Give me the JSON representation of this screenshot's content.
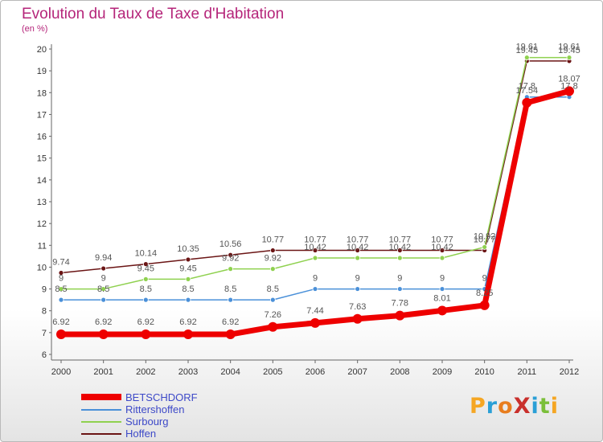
{
  "header": {
    "title": "Evolution du Taux de Taxe d'Habitation",
    "subtitle": "(en %)"
  },
  "logo": {
    "text": "ProXiti",
    "letters": [
      "P",
      "r",
      "o",
      "X",
      "i",
      "t",
      "i"
    ],
    "colors": [
      "#f5a623",
      "#2a9fd6",
      "#e87d1e",
      "#c9302c",
      "#2a9fd6",
      "#7bbf3a",
      "#f5a623"
    ]
  },
  "chart_data": {
    "type": "line",
    "title": "Evolution du Taux de Taxe d'Habitation",
    "subtitle": "(en %)",
    "xlabel": "",
    "ylabel": "",
    "categories": [
      "2000",
      "2001",
      "2002",
      "2003",
      "2004",
      "2005",
      "2006",
      "2007",
      "2008",
      "2009",
      "2010",
      "2011",
      "2012"
    ],
    "ylim": [
      6,
      20
    ],
    "yticks": [
      6,
      7,
      8,
      9,
      10,
      11,
      12,
      13,
      14,
      15,
      16,
      17,
      18,
      19,
      20
    ],
    "grid": false,
    "legend_position": "bottom-left",
    "series": [
      {
        "name": "BETSCHDORF",
        "color": "#ee0000",
        "values": [
          6.92,
          6.92,
          6.92,
          6.92,
          6.92,
          7.26,
          7.44,
          7.63,
          7.78,
          8.01,
          8.25,
          17.54,
          18.07
        ],
        "labels": [
          "6.92",
          "6.92",
          "6.92",
          "6.92",
          "6.92",
          "7.26",
          "7.44",
          "7.63",
          "7.78",
          "8.01",
          "8.25",
          "17.54",
          "18.07"
        ]
      },
      {
        "name": "Rittershoffen",
        "color": "#4a90d9",
        "values": [
          8.5,
          8.5,
          8.5,
          8.5,
          8.5,
          8.5,
          9,
          9,
          9,
          9,
          9,
          17.8,
          17.8
        ],
        "labels": [
          "8.5",
          "8.5",
          "8.5",
          "8.5",
          "8.5",
          "8.5",
          "9",
          "9",
          "9",
          "9",
          "9",
          "17.8",
          "17.8"
        ]
      },
      {
        "name": "Surbourg",
        "color": "#8fd14f",
        "values": [
          9,
          9,
          9.45,
          9.45,
          9.92,
          9.92,
          10.42,
          10.42,
          10.42,
          10.42,
          10.92,
          19.61,
          19.61
        ],
        "labels": [
          "9",
          "9",
          "9.45",
          "9.45",
          "9.92",
          "9.92",
          "10.42",
          "10.42",
          "10.42",
          "10.42",
          "10.92",
          "19.61",
          "19.61"
        ]
      },
      {
        "name": "Hoffen",
        "color": "#6b1515",
        "values": [
          9.74,
          9.94,
          10.14,
          10.35,
          10.56,
          10.77,
          10.77,
          10.77,
          10.77,
          10.77,
          10.77,
          19.45,
          19.45
        ],
        "labels": [
          "9.74",
          "9.94",
          "10.14",
          "10.35",
          "10.56",
          "10.77",
          "10.77",
          "10.77",
          "10.77",
          "10.77",
          "10.77",
          "19.45",
          "19.45"
        ]
      }
    ]
  }
}
